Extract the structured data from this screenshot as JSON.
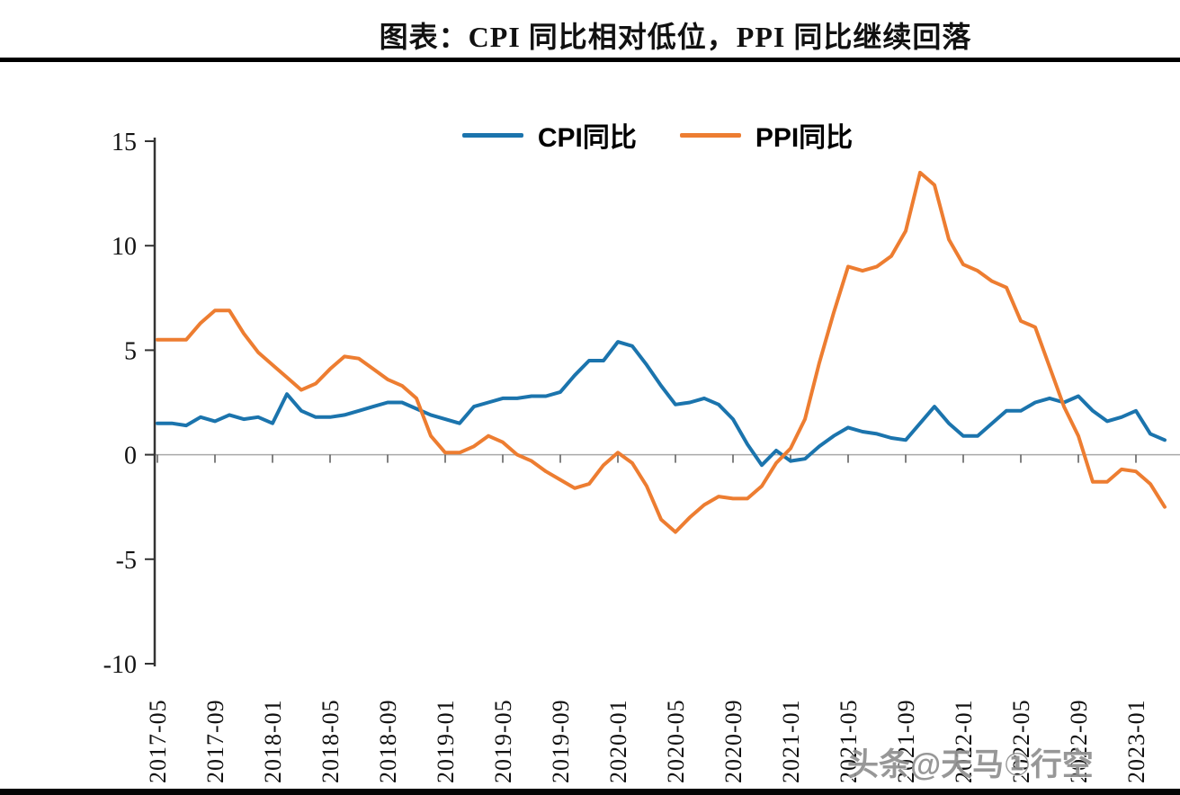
{
  "figure": {
    "title": "图表：CPI 同比相对低位，PPI 同比继续回落",
    "watermark": "头条@天马①行空"
  },
  "chart_data": {
    "type": "line",
    "title": "图表：CPI 同比相对低位，PPI 同比继续回落",
    "legend_position": "top-center",
    "grid": "zero-line-only",
    "ylim": [
      -10,
      15
    ],
    "y_ticks": [
      15,
      10,
      5,
      0,
      -5,
      -10
    ],
    "x_start": "2017-05",
    "x_end": "2023-03",
    "x_label_every_n_months": 4,
    "x_labels": [
      "2017-05",
      "2017-09",
      "2018-01",
      "2018-05",
      "2018-09",
      "2019-01",
      "2019-05",
      "2019-09",
      "2020-01",
      "2020-05",
      "2020-09",
      "2021-01",
      "2021-05",
      "2021-09",
      "2022-01",
      "2022-05",
      "2022-09",
      "2023-01"
    ],
    "series": [
      {
        "name": "CPI同比",
        "color": "#1b74ad",
        "values": [
          1.5,
          1.5,
          1.4,
          1.8,
          1.6,
          1.9,
          1.7,
          1.8,
          1.5,
          2.9,
          2.1,
          1.8,
          1.8,
          1.9,
          2.1,
          2.3,
          2.5,
          2.5,
          2.2,
          1.9,
          1.7,
          1.5,
          2.3,
          2.5,
          2.7,
          2.7,
          2.8,
          2.8,
          3.0,
          3.8,
          4.5,
          4.5,
          5.4,
          5.2,
          4.3,
          3.3,
          2.4,
          2.5,
          2.7,
          2.4,
          1.7,
          0.5,
          -0.5,
          0.2,
          -0.3,
          -0.2,
          0.4,
          0.9,
          1.3,
          1.1,
          1.0,
          0.8,
          0.7,
          1.5,
          2.3,
          1.5,
          0.9,
          0.9,
          1.5,
          2.1,
          2.1,
          2.5,
          2.7,
          2.5,
          2.8,
          2.1,
          1.6,
          1.8,
          2.1,
          1.0,
          0.7
        ]
      },
      {
        "name": "PPI同比",
        "color": "#ed7d31",
        "values": [
          5.5,
          5.5,
          5.5,
          6.3,
          6.9,
          6.9,
          5.8,
          4.9,
          4.3,
          3.7,
          3.1,
          3.4,
          4.1,
          4.7,
          4.6,
          4.1,
          3.6,
          3.3,
          2.7,
          0.9,
          0.1,
          0.1,
          0.4,
          0.9,
          0.6,
          0.0,
          -0.3,
          -0.8,
          -1.2,
          -1.6,
          -1.4,
          -0.5,
          0.1,
          -0.4,
          -1.5,
          -3.1,
          -3.7,
          -3.0,
          -2.4,
          -2.0,
          -2.1,
          -2.1,
          -1.5,
          -0.4,
          0.3,
          1.7,
          4.4,
          6.8,
          9.0,
          8.8,
          9.0,
          9.5,
          10.7,
          13.5,
          12.9,
          10.3,
          9.1,
          8.8,
          8.3,
          8.0,
          6.4,
          6.1,
          4.2,
          2.3,
          0.9,
          -1.3,
          -1.3,
          -0.7,
          -0.8,
          -1.4,
          -2.5
        ]
      }
    ]
  }
}
